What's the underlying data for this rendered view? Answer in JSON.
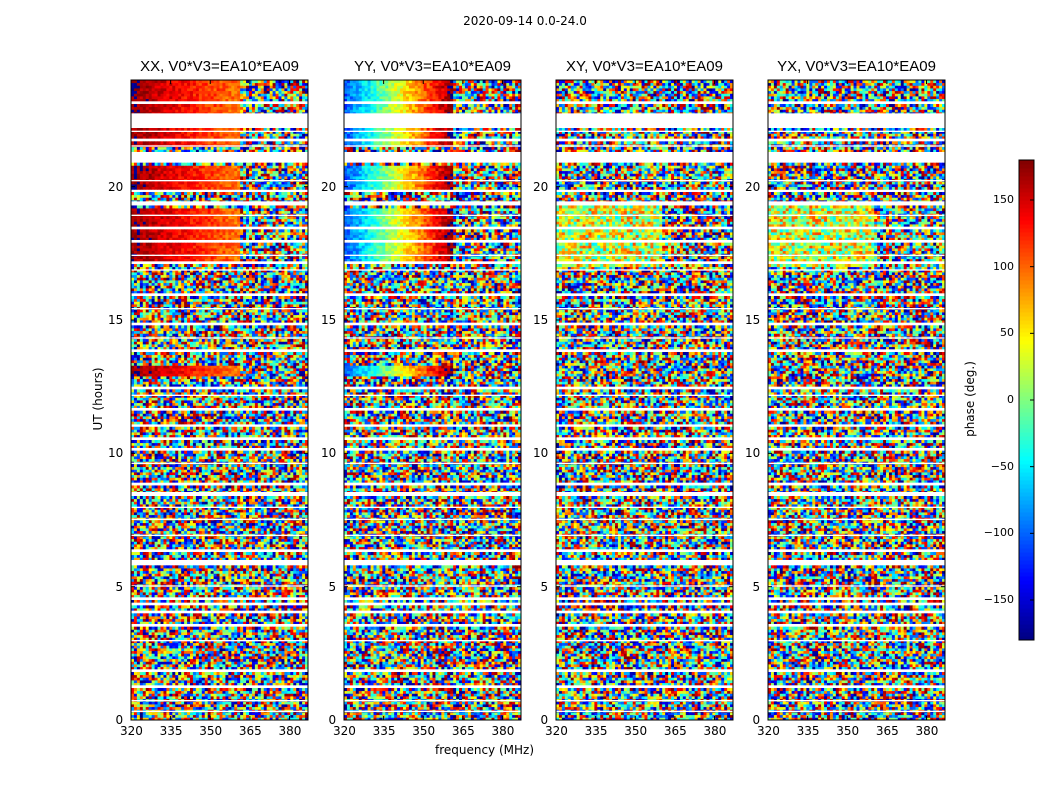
{
  "chart_data": {
    "type": "heatmap",
    "title": "2020-09-14 0.0-24.0",
    "xlabel": "frequency (MHz)",
    "ylabel": "UT (hours)",
    "xlim": [
      320,
      387
    ],
    "ylim": [
      0,
      24
    ],
    "xticks": [
      320,
      335,
      350,
      365,
      380
    ],
    "yticks": [
      0,
      5,
      10,
      15,
      20
    ],
    "colorbar": {
      "label": "phase (deg.)",
      "range": [
        -180,
        180
      ],
      "ticks": [
        150,
        100,
        50,
        0,
        -50,
        -100,
        -150
      ],
      "tick_labels": [
        "150",
        "100",
        "50",
        "0",
        "−50",
        "−100",
        "−150"
      ],
      "colormap": "jet"
    },
    "panels": [
      {
        "title": "XX, V0*V3=EA10*EA09",
        "pol": "XX"
      },
      {
        "title": "YY, V0*V3=EA10*EA09",
        "pol": "YY"
      },
      {
        "title": "XY, V0*V3=EA10*EA09",
        "pol": "XY"
      },
      {
        "title": "YX, V0*V3=EA10*EA09",
        "pol": "YX"
      }
    ],
    "structure": {
      "flagged_hour_ranges": [
        [
          0.3,
          0.35
        ],
        [
          0.7,
          0.75
        ],
        [
          1.25,
          1.3
        ],
        [
          1.85,
          1.9
        ],
        [
          2.95,
          3.0
        ],
        [
          3.55,
          3.6
        ],
        [
          4.05,
          4.1
        ],
        [
          4.35,
          4.4
        ],
        [
          4.55,
          4.6
        ],
        [
          5.0,
          5.05
        ],
        [
          5.85,
          6.0
        ],
        [
          6.35,
          6.4
        ],
        [
          6.9,
          6.95
        ],
        [
          7.5,
          7.55
        ],
        [
          7.95,
          8.0
        ],
        [
          8.45,
          8.55
        ],
        [
          8.8,
          8.9
        ],
        [
          9.6,
          9.65
        ],
        [
          10.15,
          10.2
        ],
        [
          10.5,
          10.6
        ],
        [
          11.0,
          11.05
        ],
        [
          11.65,
          11.7
        ],
        [
          12.15,
          12.2
        ],
        [
          12.45,
          12.5
        ],
        [
          13.8,
          13.9
        ],
        [
          14.3,
          14.35
        ],
        [
          14.85,
          14.9
        ],
        [
          15.4,
          15.45
        ],
        [
          15.95,
          16.0
        ],
        [
          16.85,
          16.9
        ],
        [
          17.15,
          17.2
        ],
        [
          17.4,
          17.45
        ],
        [
          17.95,
          18.0
        ],
        [
          18.45,
          18.5
        ],
        [
          18.9,
          18.95
        ],
        [
          19.3,
          19.45
        ],
        [
          19.8,
          19.85
        ],
        [
          20.2,
          20.25
        ],
        [
          20.95,
          21.0
        ],
        [
          21.05,
          21.3
        ],
        [
          21.5,
          21.55
        ],
        [
          21.75,
          21.8
        ],
        [
          22.05,
          22.1
        ],
        [
          22.25,
          22.75
        ],
        [
          23.15,
          23.2
        ]
      ],
      "coherent_hour_ranges": [
        [
          12.95,
          13.35
        ],
        [
          17.25,
          19.25
        ],
        [
          19.85,
          20.8
        ],
        [
          21.5,
          24.0
        ]
      ],
      "rfi_band_start_mhz": 361
    }
  }
}
